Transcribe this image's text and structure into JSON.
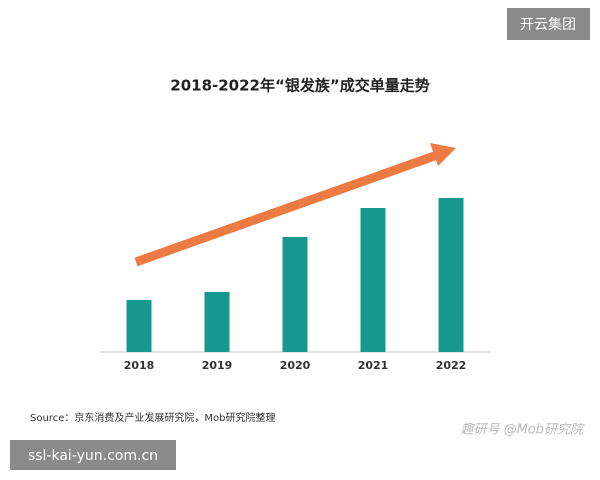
{
  "chart_data": {
    "type": "bar",
    "title": "2018-2022年“银发族”成交单量走势",
    "categories": [
      "2018",
      "2019",
      "2020",
      "2021",
      "2022"
    ],
    "values": [
      52,
      60,
      115,
      144,
      154
    ],
    "color": "#17988f",
    "ylim": [
      0,
      160
    ],
    "source": "Source：京东消费及产业发展研究院，Mob研究院整理"
  },
  "overlays": {
    "badge": "开云集团",
    "watermark": "ssl-kai-yun.com.cn",
    "credit": "趣研号 @Mob研究院"
  }
}
